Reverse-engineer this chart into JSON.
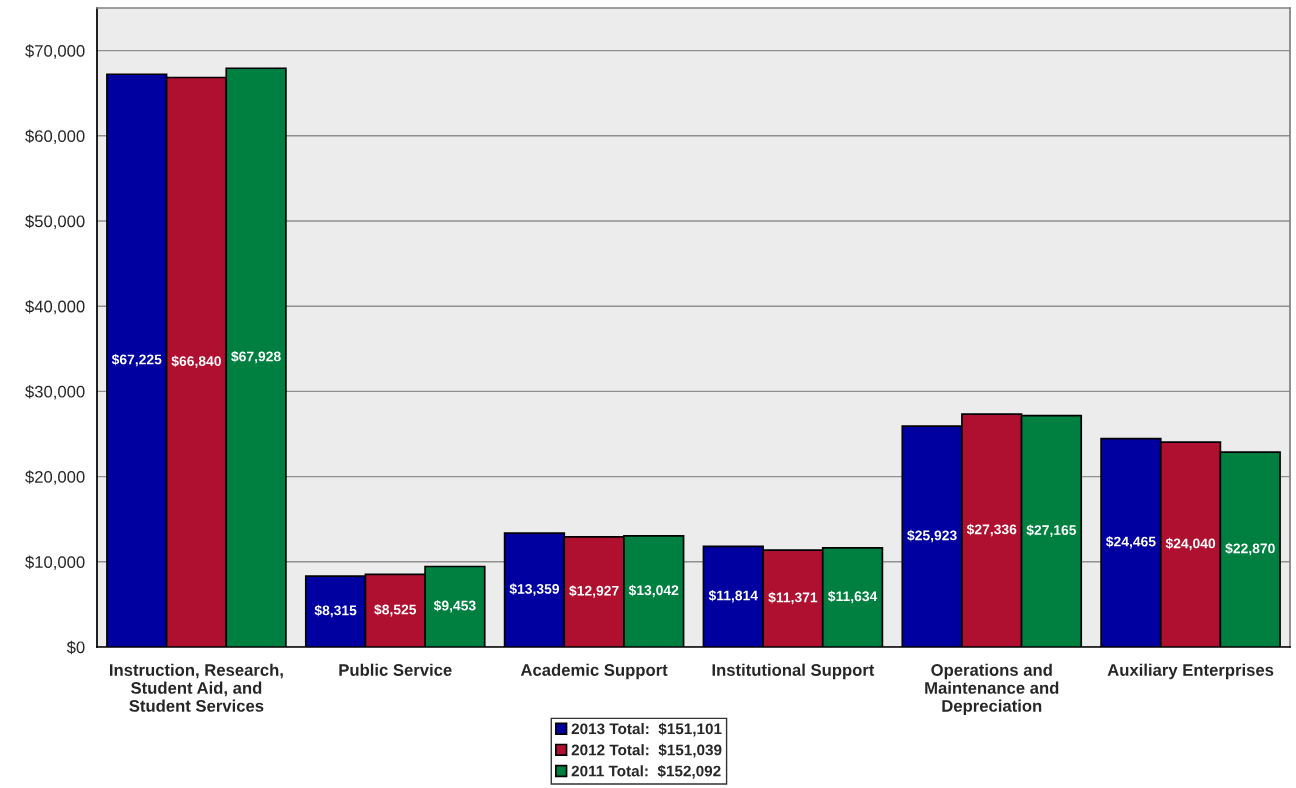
{
  "chart_data": {
    "type": "bar",
    "categories": [
      "Instruction, Research, Student Aid, and Student Services",
      "Public Service",
      "Academic Support",
      "Institutional Support",
      "Operations and Maintenance and Depreciation",
      "Auxiliary Enterprises"
    ],
    "series": [
      {
        "name": "2013 Total:  $151,101",
        "color": "#0000a0",
        "values": [
          67225,
          8315,
          13359,
          11814,
          25923,
          24465
        ],
        "value_labels": [
          "$67,225",
          "$8,315",
          "$13,359",
          "$11,814",
          "$25,923",
          "$24,465"
        ]
      },
      {
        "name": "2012 Total:  $151,039",
        "color": "#b0102f",
        "values": [
          66840,
          8525,
          12927,
          11371,
          27336,
          24040
        ],
        "value_labels": [
          "$66,840",
          "$8,525",
          "$12,927",
          "$11,371",
          "$27,336",
          "$24,040"
        ]
      },
      {
        "name": "2011 Total:  $152,092",
        "color": "#008040",
        "values": [
          67928,
          9453,
          13042,
          11634,
          27165,
          22870
        ],
        "value_labels": [
          "$67,928",
          "$9,453",
          "$13,042",
          "$11,634",
          "$27,165",
          "$22,870"
        ]
      }
    ],
    "ylim": [
      0,
      75000
    ],
    "yticks": [
      {
        "value": 0,
        "label": "$0"
      },
      {
        "value": 10000,
        "label": "$10,000"
      },
      {
        "value": 20000,
        "label": "$20,000"
      },
      {
        "value": 30000,
        "label": "$30,000"
      },
      {
        "value": 40000,
        "label": "$40,000"
      },
      {
        "value": 50000,
        "label": "$50,000"
      },
      {
        "value": 60000,
        "label": "$60,000"
      },
      {
        "value": 70000,
        "label": "$70,000"
      }
    ],
    "grid": "y",
    "legend": "bottom"
  }
}
